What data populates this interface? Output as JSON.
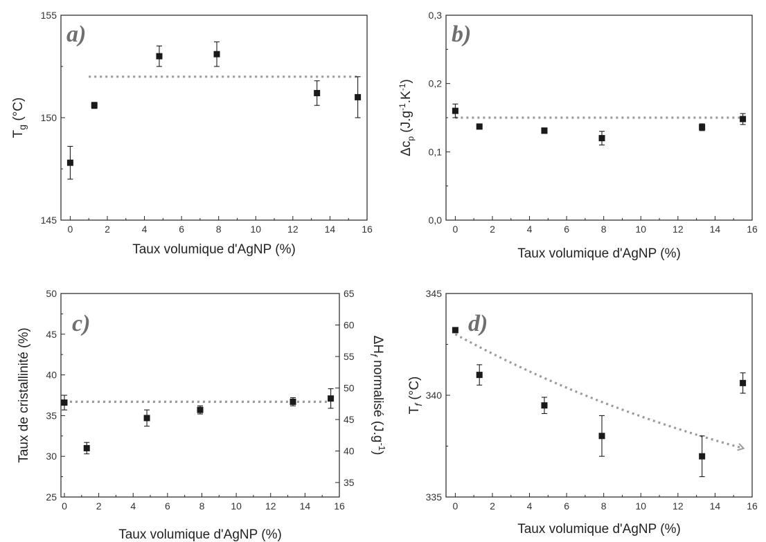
{
  "chart_data": [
    {
      "type": "scatter",
      "panel_label": "a)",
      "xlabel": "Taux volumique d'AgNP (%)",
      "ylabel_main": "T",
      "ylabel_sub": "g",
      "ylabel_rest": " (°C)",
      "xlim": [
        -0.5,
        16
      ],
      "ylim": [
        145,
        155
      ],
      "xticks": [
        "0",
        "2",
        "4",
        "6",
        "8",
        "10",
        "12",
        "14",
        "16"
      ],
      "yticks": [
        "145",
        "150",
        "155"
      ],
      "x": [
        0,
        1.3,
        4.8,
        7.9,
        13.3,
        15.5
      ],
      "y": [
        147.8,
        150.6,
        153.0,
        153.1,
        151.2,
        151.0
      ],
      "err": [
        0.8,
        0.15,
        0.5,
        0.6,
        0.6,
        1.0
      ],
      "reference_line": {
        "x": [
          1,
          15.5
        ],
        "y": [
          152,
          152
        ]
      }
    },
    {
      "type": "scatter",
      "panel_label": "b)",
      "xlabel": "Taux volumique d'AgNP (%)",
      "ylabel": "Δcp (J.g-1.K-1)",
      "xlim": [
        -0.5,
        16
      ],
      "ylim": [
        0,
        0.3
      ],
      "xticks": [
        "0",
        "2",
        "4",
        "6",
        "8",
        "10",
        "12",
        "14",
        "16"
      ],
      "yticks": [
        "0,0",
        "0,1",
        "0,2",
        "0,3"
      ],
      "x": [
        0,
        1.3,
        4.8,
        7.9,
        13.3,
        15.5
      ],
      "y": [
        0.16,
        0.137,
        0.131,
        0.12,
        0.136,
        0.148
      ],
      "err": [
        0.01,
        0.003,
        0.004,
        0.01,
        0.005,
        0.008
      ],
      "reference_line": {
        "x": [
          0,
          15.5
        ],
        "y": [
          0.15,
          0.15
        ]
      }
    },
    {
      "type": "scatter",
      "panel_label": "c)",
      "xlabel": "Taux volumique d'AgNP (%)",
      "ylabel": "Taux de cristallinité (%)",
      "ylabel_right": "ΔHf normalisé (J.g-1)",
      "xlim": [
        -0.2,
        16
      ],
      "ylim": [
        25,
        50
      ],
      "ylim_right": [
        32.7,
        65
      ],
      "xticks": [
        "0",
        "2",
        "4",
        "6",
        "8",
        "10",
        "12",
        "14",
        "16"
      ],
      "yticks": [
        "25",
        "30",
        "35",
        "40",
        "45",
        "50"
      ],
      "yticks_right": [
        "35",
        "40",
        "45",
        "50",
        "55",
        "60",
        "65"
      ],
      "x": [
        0,
        1.3,
        4.8,
        7.9,
        13.3,
        15.5
      ],
      "y": [
        36.6,
        31.0,
        34.7,
        35.7,
        36.7,
        37.1
      ],
      "err": [
        0.9,
        0.7,
        1.0,
        0.5,
        0.5,
        1.2
      ],
      "reference_line": {
        "x": [
          0,
          15.5
        ],
        "y": [
          36.7,
          36.7
        ]
      }
    },
    {
      "type": "scatter",
      "panel_label": "d)",
      "xlabel": "Taux volumique d'AgNP (%)",
      "ylabel_main": "T",
      "ylabel_sub": "f",
      "ylabel_rest": " (°C)",
      "xlim": [
        -0.5,
        16
      ],
      "ylim": [
        335,
        345
      ],
      "xticks": [
        "0",
        "2",
        "4",
        "6",
        "8",
        "10",
        "12",
        "14",
        "16"
      ],
      "yticks": [
        "335",
        "340",
        "345"
      ],
      "x": [
        0,
        1.3,
        4.8,
        7.9,
        13.3,
        15.5
      ],
      "y": [
        343.2,
        341.0,
        339.5,
        338.0,
        337.0,
        340.6
      ],
      "err": [
        0,
        0.5,
        0.4,
        1.0,
        1.0,
        0.5
      ],
      "trend_arrow": {
        "x": [
          0,
          15.5
        ],
        "y": [
          343.0,
          337.4
        ]
      }
    }
  ]
}
